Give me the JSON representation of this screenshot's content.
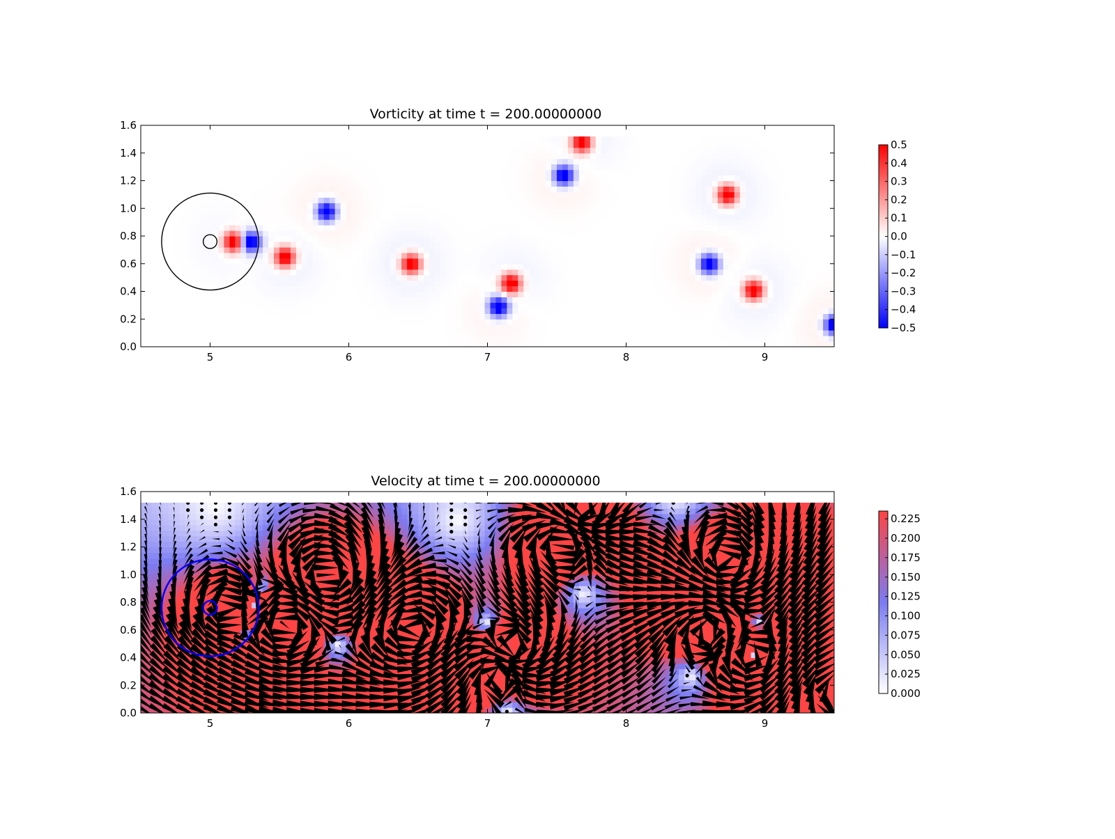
{
  "panels": [
    {
      "title": "Vorticity at time t =   200.00000000",
      "field": "vorticity",
      "xlim": [
        4.5,
        9.5
      ],
      "ylim": [
        0.0,
        1.6
      ],
      "data_extent_y": [
        0.0,
        1.52
      ],
      "xticks": [
        "5",
        "6",
        "7",
        "8",
        "9"
      ],
      "yticks": [
        "0.0",
        "0.2",
        "0.4",
        "0.6",
        "0.8",
        "1.0",
        "1.2",
        "1.4",
        "1.6"
      ],
      "colormap": "bwr",
      "colorbar": {
        "range": [
          -0.5,
          0.5
        ],
        "ticks": [
          "0.5",
          "0.4",
          "0.3",
          "0.2",
          "0.1",
          "0.0",
          "−0.1",
          "−0.2",
          "−0.3",
          "−0.4",
          "−0.5"
        ],
        "colors": [
          "#0000ff",
          "#ffffff",
          "#ff0000"
        ]
      },
      "circle_color": "#000000"
    },
    {
      "title": "Velocity at time t =   200.00000000",
      "field": "velocity",
      "xlim": [
        4.5,
        9.5
      ],
      "ylim": [
        0.0,
        1.6
      ],
      "data_extent_y": [
        0.0,
        1.52
      ],
      "xticks": [
        "5",
        "6",
        "7",
        "8",
        "9"
      ],
      "yticks": [
        "0.0",
        "0.2",
        "0.4",
        "0.6",
        "0.8",
        "1.0",
        "1.2",
        "1.4",
        "1.6"
      ],
      "colormap": "white-blue-red",
      "colorbar": {
        "range": [
          0.0,
          0.235
        ],
        "ticks": [
          "0.225",
          "0.200",
          "0.175",
          "0.150",
          "0.125",
          "0.100",
          "0.075",
          "0.050",
          "0.025",
          "0.000"
        ],
        "tick_values": [
          0.225,
          0.2,
          0.175,
          0.15,
          0.125,
          0.1,
          0.075,
          0.05,
          0.025,
          0.0
        ],
        "colors": [
          "#ffffff",
          "#7b7bf3",
          "#ff4444"
        ]
      },
      "quiver": true,
      "circle_color": "#0000ff"
    }
  ],
  "chart_data": {
    "type": "heatmap",
    "time": 200.0,
    "cylinder": {
      "center": [
        5.0,
        0.76
      ],
      "radius": 0.05
    },
    "ring": {
      "center": [
        5.0,
        0.76
      ],
      "radius": 0.35
    },
    "vortices": [
      {
        "x": 5.17,
        "y": 0.76,
        "strength": 0.5
      },
      {
        "x": 5.29,
        "y": 0.76,
        "strength": -0.5
      },
      {
        "x": 5.54,
        "y": 0.65,
        "strength": 0.5
      },
      {
        "x": 5.84,
        "y": 0.98,
        "strength": -0.5
      },
      {
        "x": 6.45,
        "y": 0.6,
        "strength": 0.5
      },
      {
        "x": 7.17,
        "y": 0.46,
        "strength": 0.5
      },
      {
        "x": 7.08,
        "y": 0.29,
        "strength": -0.5
      },
      {
        "x": 7.55,
        "y": 1.24,
        "strength": -0.5
      },
      {
        "x": 7.68,
        "y": 1.48,
        "strength": 0.5
      },
      {
        "x": 8.73,
        "y": 1.1,
        "strength": 0.5
      },
      {
        "x": 8.6,
        "y": 0.6,
        "strength": -0.5
      },
      {
        "x": 8.92,
        "y": 0.41,
        "strength": 0.5
      },
      {
        "x": 9.5,
        "y": 0.16,
        "strength": -0.5
      }
    ],
    "vorticity_range": [
      -0.5,
      0.5
    ],
    "speed_range": [
      0.0,
      0.235
    ]
  }
}
